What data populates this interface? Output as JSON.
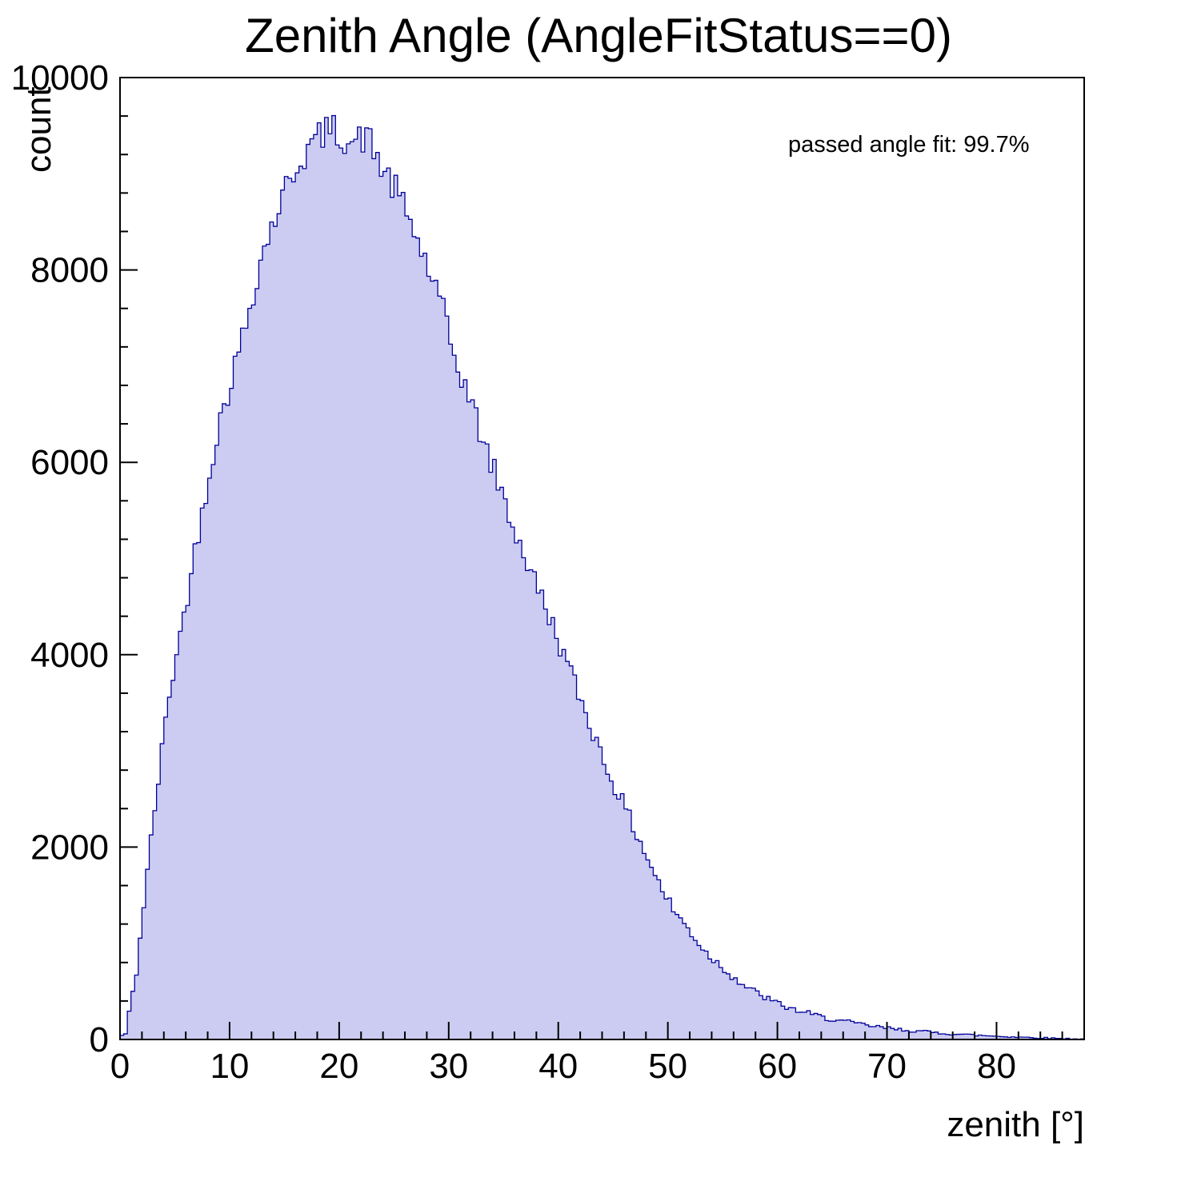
{
  "title": "Zenith Angle (AngleFitStatus==0)",
  "annotation": "passed angle fit: 99.7%",
  "axes": {
    "xlabel": "zenith [°]",
    "ylabel": "count",
    "xticks": [
      0,
      10,
      20,
      30,
      40,
      50,
      60,
      70,
      80
    ],
    "yticks": [
      0,
      2000,
      4000,
      6000,
      8000,
      10000
    ],
    "xlim": [
      0,
      88
    ],
    "ylim": [
      0,
      10000
    ],
    "minor_x_step": 2,
    "minor_y_step": 400
  },
  "style": {
    "fill_color": "#ccccf2",
    "line_color": "#000099",
    "axis_color": "#000000",
    "background": "#ffffff"
  },
  "chart_data": {
    "type": "bar",
    "title": "Zenith Angle (AngleFitStatus==0)",
    "xlabel": "zenith [°]",
    "ylabel": "count",
    "xlim": [
      0,
      88
    ],
    "ylim": [
      0,
      10000
    ],
    "legend": "none",
    "grid": false,
    "bin_width_deg": 1,
    "x": [
      0,
      1,
      2,
      3,
      4,
      5,
      6,
      7,
      8,
      9,
      10,
      11,
      12,
      13,
      14,
      15,
      16,
      17,
      18,
      19,
      20,
      21,
      22,
      23,
      24,
      25,
      26,
      27,
      28,
      29,
      30,
      31,
      32,
      33,
      34,
      35,
      36,
      37,
      38,
      39,
      40,
      41,
      42,
      43,
      44,
      45,
      46,
      47,
      48,
      49,
      50,
      51,
      52,
      53,
      54,
      55,
      56,
      57,
      58,
      59,
      60,
      61,
      62,
      63,
      64,
      65,
      66,
      67,
      68,
      69,
      70,
      71,
      72,
      73,
      74,
      75,
      76,
      77,
      78,
      79,
      80,
      81,
      82,
      83,
      84,
      85,
      86,
      87
    ],
    "values": [
      60,
      700,
      1750,
      2700,
      3600,
      4200,
      4850,
      5500,
      6100,
      6600,
      7000,
      7450,
      7950,
      8350,
      8650,
      8950,
      9150,
      9300,
      9420,
      9450,
      9380,
      9320,
      9400,
      9150,
      8950,
      8750,
      8500,
      8200,
      7900,
      7550,
      7100,
      6800,
      6450,
      6100,
      5800,
      5450,
      5150,
      4850,
      4600,
      4300,
      4000,
      3700,
      3400,
      3100,
      2800,
      2550,
      2300,
      2050,
      1800,
      1550,
      1350,
      1200,
      1050,
      900,
      800,
      700,
      600,
      520,
      460,
      400,
      350,
      310,
      280,
      250,
      220,
      200,
      180,
      160,
      140,
      125,
      110,
      100,
      90,
      80,
      70,
      62,
      55,
      48,
      42,
      37,
      32,
      27,
      23,
      19,
      15,
      12,
      9,
      6
    ],
    "annotations": [
      "passed angle fit: 99.7%"
    ]
  }
}
